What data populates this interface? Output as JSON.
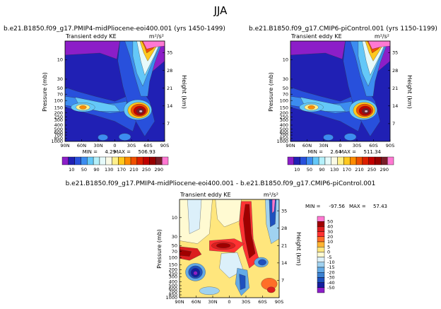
{
  "figure": {
    "season": "JJA"
  },
  "chart_data": [
    {
      "type": "heatmap",
      "title": "b.e21.B1850.f09_g17.PMIP4-midPliocene-eoi400.001  (yrs 1450-1499)",
      "variable": "Transient eddy KE",
      "units": "m²/s²",
      "xlabel": "",
      "ylabel": "Pressure (mb)",
      "ylabel_right": "Height (km)",
      "x_ticks": [
        "90N",
        "60N",
        "30N",
        "0",
        "30S",
        "60S",
        "90S"
      ],
      "y_ticks": [
        "10",
        "30",
        "50",
        "70",
        "100",
        "150",
        "200",
        "250",
        "300",
        "400",
        "500",
        "600",
        "700",
        "850",
        "1000"
      ],
      "y_ticks_right": [
        "35",
        "28",
        "21",
        "14",
        "7"
      ],
      "min_label": "MIN =",
      "min_value": "4.29",
      "max_label": "MAX =",
      "max_value": "506.93"
    },
    {
      "type": "heatmap",
      "title": "b.e21.B1850.f09_g17.CMIP6-piControl.001  (yrs 1150-1199)",
      "variable": "Transient eddy KE",
      "units": "m²/s²",
      "xlabel": "",
      "ylabel": "Pressure (mb)",
      "ylabel_right": "Height (km)",
      "x_ticks": [
        "90N",
        "60N",
        "30N",
        "0",
        "30S",
        "60S",
        "90S"
      ],
      "y_ticks": [
        "10",
        "30",
        "50",
        "70",
        "100",
        "150",
        "200",
        "250",
        "300",
        "400",
        "500",
        "600",
        "700",
        "850",
        "1000"
      ],
      "y_ticks_right": [
        "35",
        "28",
        "21",
        "14",
        "7"
      ],
      "min_label": "MIN =",
      "min_value": "2.64",
      "max_label": "MAX =",
      "max_value": "511.34"
    },
    {
      "type": "heatmap",
      "title": "b.e21.B1850.f09_g17.PMIP4-midPliocene-eoi400.001  -  b.e21.B1850.f09_g17.CMIP6-piControl.001",
      "variable": "Transient eddy KE",
      "units": "m²/s²",
      "xlabel": "",
      "ylabel": "Pressure (mb)",
      "ylabel_right": "Height (km)",
      "x_ticks": [
        "90N",
        "60N",
        "30N",
        "0",
        "30S",
        "60S",
        "90S"
      ],
      "y_ticks": [
        "10",
        "30",
        "50",
        "70",
        "100",
        "150",
        "200",
        "250",
        "300",
        "400",
        "500",
        "600",
        "700",
        "850",
        "1000"
      ],
      "y_ticks_right": [
        "35",
        "28",
        "21",
        "14",
        "7"
      ],
      "min_label": "MIN =",
      "min_value": "-97.56",
      "max_label": "MAX =",
      "max_value": "57.43"
    }
  ],
  "colorbars": {
    "shared": {
      "labels": [
        "10",
        "50",
        "90",
        "130",
        "170",
        "210",
        "250",
        "290"
      ],
      "colors": [
        "#8c1ec8",
        "#2020b4",
        "#2850dc",
        "#3c8cf0",
        "#64c8f8",
        "#b4f0fa",
        "#e6fafa",
        "#fafae6",
        "#fff08c",
        "#ffc81e",
        "#ff8c00",
        "#f05000",
        "#dc2000",
        "#c00000",
        "#960000",
        "#781e28",
        "#ff78d2"
      ]
    },
    "difference": {
      "labels": [
        "50",
        "40",
        "30",
        "20",
        "10",
        "5",
        "0",
        "-5",
        "-10",
        "-15",
        "-20",
        "-30",
        "-40",
        "-50"
      ],
      "colors": [
        "#ff78d2",
        "#a00000",
        "#dc1e1e",
        "#ff3232",
        "#ff6e28",
        "#ffb432",
        "#ffe67d",
        "#fffad2",
        "#dcf0fa",
        "#a0d2f0",
        "#64aae6",
        "#3c82d2",
        "#1e50be",
        "#141ea0",
        "#8c1ec8"
      ]
    }
  }
}
